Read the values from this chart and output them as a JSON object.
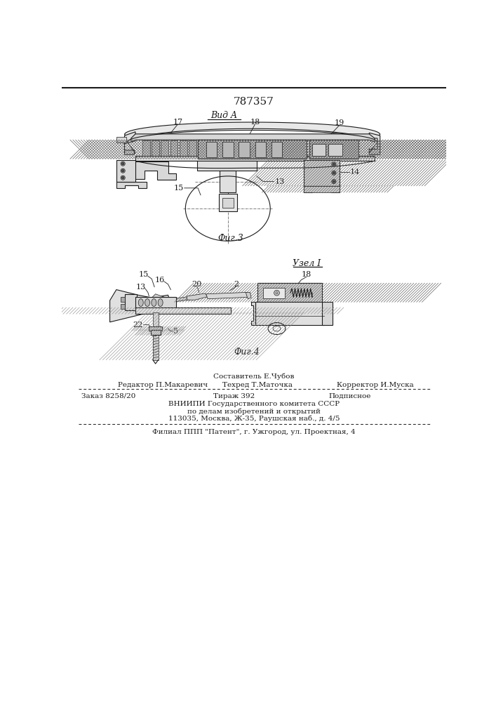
{
  "patent_number": "787357",
  "fig3_label": "Фиг.3",
  "fig4_label": "Фиг.4",
  "view_a_label": "Вид A",
  "node1_label": "Узел I",
  "footer": {
    "line1_center": "Составитель Е.Чубов",
    "line2_left": "Редактор П.Макаревич",
    "line2_center": "Техред Т.Маточка",
    "line2_right": "Корректор И.Муска",
    "line3_left": "Заказ 8258/20",
    "line3_center": "Тираж 392",
    "line3_right": "Подписное",
    "line4": "ВНИИПИ Государственного комитета СССР",
    "line5": "по делам изобретений и открытий",
    "line6": "113035, Москва, Ж-35, Раушская наб., д. 4/5",
    "line7": "Филиал ППП \"Патент\", г. Ужгород, ул. Проектная, 4"
  },
  "bg_color": "#ffffff",
  "line_color": "#1a1a1a"
}
